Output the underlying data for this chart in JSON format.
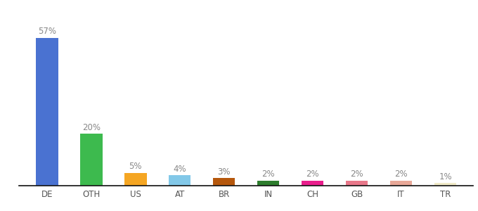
{
  "categories": [
    "DE",
    "OTH",
    "US",
    "AT",
    "BR",
    "IN",
    "CH",
    "GB",
    "IT",
    "TR"
  ],
  "values": [
    57,
    20,
    5,
    4,
    3,
    2,
    2,
    2,
    2,
    1
  ],
  "bar_colors": [
    "#4a72d1",
    "#3dba4e",
    "#f5a623",
    "#82c8e8",
    "#b5570c",
    "#2e7d2e",
    "#e91e8c",
    "#e8788a",
    "#e8a898",
    "#f0eac8"
  ],
  "labels": [
    "57%",
    "20%",
    "5%",
    "4%",
    "3%",
    "2%",
    "2%",
    "2%",
    "2%",
    "1%"
  ],
  "label_color": "#888888",
  "label_fontsize": 8.5,
  "xlabel_fontsize": 8.5,
  "ylim": [
    0,
    65
  ],
  "background_color": "#ffffff",
  "spine_color": "#111111",
  "bar_width": 0.5
}
